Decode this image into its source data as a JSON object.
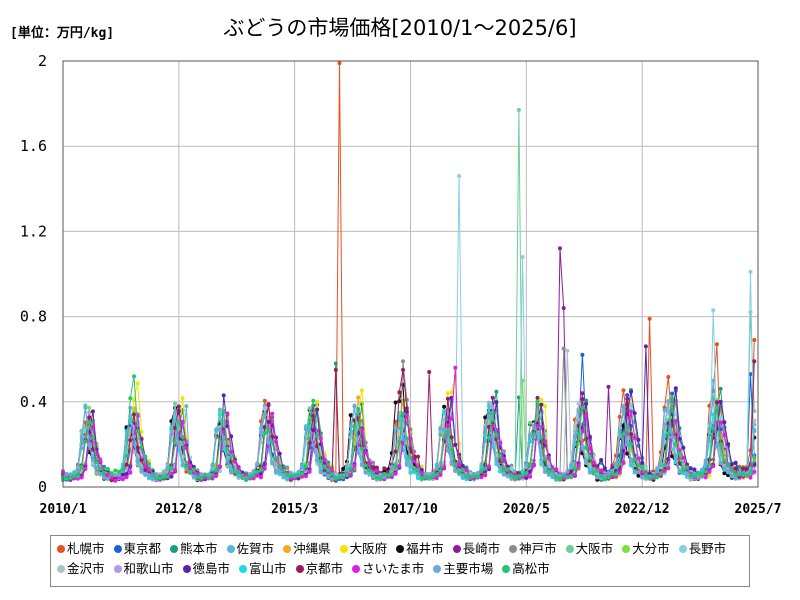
{
  "header": {
    "unit_label": "[単位：万円/kg]",
    "title": "ぶどうの市場価格[2010/1～2025/6]"
  },
  "chart_data": {
    "type": "line",
    "title": "ぶどうの市場価格[2010/1～2025/6]",
    "ylabel": "[単位：万円/kg]",
    "ylim": [
      0,
      2
    ],
    "yticks": [
      0,
      0.4,
      0.8,
      1.2,
      1.6,
      2
    ],
    "ytick_labels": [
      "0",
      "0.4",
      "0.8",
      "1.2",
      "1.6",
      "2"
    ],
    "x_range": [
      "2010/1",
      "2025/7"
    ],
    "xticks": [
      "2010/1",
      "2012/8",
      "2015/3",
      "2017/10",
      "2020/5",
      "2022/12",
      "2025/7"
    ],
    "grid": true,
    "legend_position": "bottom",
    "seasonal_base": [
      0.05,
      0.04,
      0.05,
      0.05,
      0.06,
      0.09,
      0.24,
      0.32,
      0.2,
      0.12,
      0.08,
      0.07
    ],
    "series": [
      {
        "name": "札幌市",
        "color": "#e8501e",
        "year_factor": [
          1.0,
          1.05,
          1.1,
          1.0,
          1.1,
          1.05,
          1.0,
          1.15,
          1.05,
          1.1,
          1.1,
          1.15,
          1.45,
          1.55,
          1.35,
          1.6
        ],
        "spikes": [
          {
            "date": "2016/3",
            "value": 1.99
          },
          {
            "date": "2023/2",
            "value": 0.79
          },
          {
            "date": "2024/8",
            "value": 0.67
          },
          {
            "date": "2025/6",
            "value": 0.69
          }
        ]
      },
      {
        "name": "東京都",
        "color": "#1c5ee0",
        "year_factor": [
          0.9,
          0.85,
          0.95,
          0.9,
          0.95,
          0.9,
          0.9,
          0.95,
          0.95,
          1.0,
          1.0,
          1.1,
          1.4,
          1.3,
          1.3,
          1.4
        ],
        "spikes": [
          {
            "date": "2021/8",
            "value": 0.62
          },
          {
            "date": "2025/5",
            "value": 0.53
          }
        ]
      },
      {
        "name": "熊本市",
        "color": "#1a9e80",
        "year_factor": [
          1.0,
          1.05,
          1.0,
          1.0,
          1.1,
          1.2,
          1.05,
          1.1,
          1.1,
          1.25,
          1.05,
          1.1,
          1.5,
          1.3,
          1.4,
          1.6
        ],
        "spikes": [
          {
            "date": "2016/2",
            "value": 0.58
          },
          {
            "date": "2020/3",
            "value": 0.42
          }
        ]
      },
      {
        "name": "佐賀市",
        "color": "#55b4e8",
        "year_factor": [
          0.95,
          0.9,
          1.0,
          1.0,
          1.05,
          1.15,
          1.0,
          1.0,
          1.05,
          1.05,
          1.0,
          1.0,
          1.2,
          1.3,
          1.3,
          1.4
        ],
        "spikes": [
          {
            "date": "2012/10",
            "value": 0.38
          }
        ]
      },
      {
        "name": "沖縄県",
        "color": "#f5a81d",
        "year_factor": [
          1.0,
          1.0,
          1.05,
          0.95,
          1.0,
          1.1,
          1.1,
          1.1,
          1.1,
          1.1,
          1.05,
          1.05,
          1.1,
          1.2,
          1.2,
          1.3
        ],
        "spikes": [
          {
            "date": "2016/8",
            "value": 0.42
          }
        ]
      },
      {
        "name": "大阪府",
        "color": "#f2e600",
        "year_factor": [
          1.0,
          1.3,
          1.1,
          1.0,
          1.0,
          1.1,
          1.2,
          1.2,
          1.45,
          1.0,
          1.1,
          1.05,
          1.1,
          1.1,
          1.1,
          1.2
        ],
        "spikes": [
          {
            "date": "2011/8",
            "value": 0.41
          },
          {
            "date": "2018/8",
            "value": 0.44
          },
          {
            "date": "2018/10",
            "value": 0.52
          },
          {
            "date": "2020/10",
            "value": 0.38
          }
        ]
      },
      {
        "name": "福井市",
        "color": "#111111",
        "year_factor": [
          0.95,
          1.0,
          1.1,
          1.0,
          1.0,
          1.0,
          1.2,
          1.5,
          1.1,
          1.15,
          1.15,
          0.85,
          0.9,
          0.85,
          0.9,
          1.2
        ],
        "spikes": [
          {
            "date": "2012/8",
            "value": 0.33
          },
          {
            "date": "2017/8",
            "value": 0.48
          },
          {
            "date": "2020/9",
            "value": 0.35
          }
        ]
      },
      {
        "name": "長崎市",
        "color": "#8e1a9e",
        "year_factor": [
          1.0,
          1.0,
          1.0,
          1.0,
          1.05,
          1.05,
          1.0,
          1.05,
          1.05,
          1.1,
          1.05,
          1.15,
          1.1,
          1.1,
          1.1,
          1.2
        ],
        "spikes": [
          {
            "date": "2021/2",
            "value": 1.12
          },
          {
            "date": "2021/3",
            "value": 0.84
          },
          {
            "date": "2022/3",
            "value": 0.47
          }
        ]
      },
      {
        "name": "神戸市",
        "color": "#8c8c8c",
        "year_factor": [
          1.0,
          1.0,
          1.05,
          1.0,
          1.1,
          1.15,
          1.2,
          1.35,
          1.1,
          1.2,
          1.25,
          1.15,
          1.15,
          1.15,
          1.2,
          1.25
        ],
        "spikes": [
          {
            "date": "2017/8",
            "value": 0.59
          },
          {
            "date": "2021/3",
            "value": 0.65
          }
        ]
      },
      {
        "name": "大阪市",
        "color": "#6ccf9a",
        "year_factor": [
          1.0,
          1.0,
          1.05,
          1.0,
          1.05,
          1.1,
          1.1,
          1.05,
          1.05,
          1.05,
          1.1,
          1.05,
          1.1,
          1.1,
          1.2,
          1.3
        ],
        "spikes": [
          {
            "date": "2020/3",
            "value": 1.77
          },
          {
            "date": "2025/5",
            "value": 0.82
          }
        ]
      },
      {
        "name": "大分市",
        "color": "#7ee23c",
        "year_factor": [
          1.0,
          1.0,
          1.0,
          1.0,
          1.0,
          1.05,
          1.05,
          1.05,
          1.05,
          1.1,
          1.05,
          1.05,
          1.1,
          1.1,
          1.1,
          1.2
        ],
        "spikes": [
          {
            "date": "2020/4",
            "value": 0.5
          }
        ]
      },
      {
        "name": "長野市",
        "color": "#86d0e0",
        "year_factor": [
          1.0,
          1.0,
          1.0,
          1.0,
          1.0,
          1.05,
          1.05,
          1.05,
          1.1,
          1.05,
          1.05,
          1.05,
          1.1,
          1.2,
          1.1,
          1.3
        ],
        "spikes": [
          {
            "date": "2018/11",
            "value": 1.46
          },
          {
            "date": "2020/4",
            "value": 1.08
          },
          {
            "date": "2025/5",
            "value": 1.01
          },
          {
            "date": "2024/7",
            "value": 0.83
          }
        ]
      },
      {
        "name": "金沢市",
        "color": "#a8c4c4",
        "year_factor": [
          1.0,
          1.0,
          1.0,
          1.0,
          1.05,
          1.0,
          1.0,
          1.05,
          1.05,
          1.05,
          1.1,
          1.05,
          1.05,
          1.1,
          1.1,
          1.2
        ],
        "spikes": [
          {
            "date": "2021/4",
            "value": 0.64
          }
        ]
      },
      {
        "name": "和歌山市",
        "color": "#b49ae0",
        "year_factor": [
          1.0,
          1.0,
          1.0,
          1.0,
          1.0,
          1.0,
          1.0,
          1.05,
          1.0,
          1.05,
          1.0,
          1.05,
          1.05,
          1.05,
          1.1,
          1.15
        ],
        "spikes": []
      },
      {
        "name": "徳島市",
        "color": "#5a22b0",
        "year_factor": [
          1.0,
          1.0,
          1.0,
          1.05,
          1.1,
          1.0,
          1.0,
          1.05,
          1.1,
          1.1,
          1.05,
          1.1,
          1.6,
          1.3,
          1.4,
          1.5
        ],
        "spikes": [
          {
            "date": "2013/8",
            "value": 0.43
          },
          {
            "date": "2023/1",
            "value": 0.66
          }
        ]
      },
      {
        "name": "富山市",
        "color": "#22d4e8",
        "year_factor": [
          1.0,
          1.0,
          1.0,
          1.0,
          1.0,
          1.0,
          1.0,
          1.0,
          1.05,
          1.0,
          1.0,
          1.0,
          1.05,
          1.05,
          1.05,
          1.1
        ],
        "spikes": []
      },
      {
        "name": "京都市",
        "color": "#9e1a5a",
        "year_factor": [
          1.0,
          1.0,
          1.0,
          1.0,
          1.1,
          1.0,
          1.1,
          1.7,
          1.1,
          1.05,
          1.1,
          1.1,
          1.1,
          1.1,
          1.2,
          1.5
        ],
        "spikes": [
          {
            "date": "2016/2",
            "value": 0.55
          },
          {
            "date": "2017/8",
            "value": 0.55
          },
          {
            "date": "2018/3",
            "value": 0.54
          },
          {
            "date": "2025/6",
            "value": 0.59
          }
        ]
      },
      {
        "name": "さいたま市",
        "color": "#e020e0",
        "year_factor": [
          0.9,
          0.9,
          0.95,
          0.9,
          0.9,
          0.95,
          0.95,
          0.95,
          1.0,
          1.0,
          1.0,
          1.05,
          1.05,
          1.05,
          1.1,
          1.1
        ],
        "spikes": [
          {
            "date": "2018/10",
            "value": 0.56
          }
        ]
      },
      {
        "name": "主要市場",
        "color": "#6fa8d8",
        "year_factor": [
          1.0,
          1.0,
          1.0,
          1.0,
          1.0,
          1.0,
          1.0,
          1.05,
          1.05,
          1.05,
          1.05,
          1.05,
          1.1,
          1.1,
          1.1,
          1.15
        ],
        "spikes": []
      },
      {
        "name": "高松市",
        "color": "#22c770",
        "year_factor": [
          1.0,
          1.6,
          1.0,
          1.0,
          1.0,
          1.1,
          1.0,
          1.0,
          1.0,
          1.05,
          1.05,
          1.0,
          1.1,
          1.1,
          1.2,
          1.3
        ],
        "spikes": [
          {
            "date": "2011/8",
            "value": 0.52
          }
        ]
      }
    ]
  }
}
